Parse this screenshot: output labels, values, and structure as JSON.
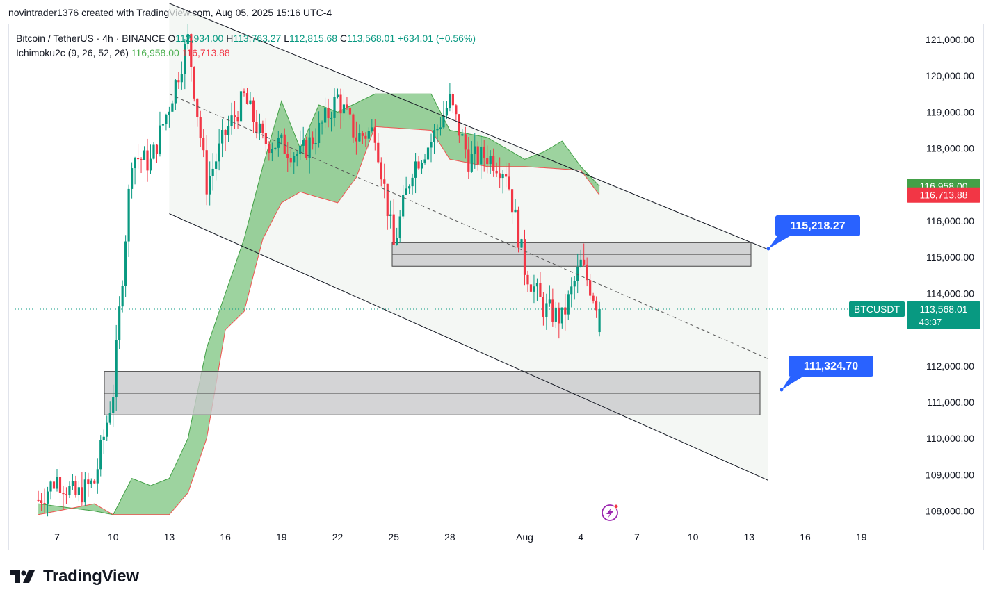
{
  "header": {
    "attribution": "novintrader1376 created with TradingView.com, Aug 05, 2025 15:16 UTC-4"
  },
  "legend": {
    "symbol": "Bitcoin / TetherUS · 4h · BINANCE",
    "o_label": "O",
    "o_value": "112,934.00",
    "h_label": "H",
    "h_value": "113,763.27",
    "l_label": "L",
    "l_value": "112,815.68",
    "c_label": "C",
    "c_value": "113,568.01",
    "change": "+634.01 (+0.56%)",
    "indicator": "Ichimoku2c (9, 26, 52, 26)",
    "ind_value_1": "116,958.00",
    "ind_value_2": "116,713.88"
  },
  "badges": {
    "ichimoku_a": "116,958.00",
    "ichimoku_b": "116,713.88",
    "ticker": "BTCUSDT",
    "last_price": "113,568.01",
    "countdown": "43:37",
    "callout_upper": "115,218.27",
    "callout_lower": "111,324.70"
  },
  "footer": {
    "brand": "TradingView"
  },
  "colors": {
    "up": "#089981",
    "down": "#f23645",
    "cloud": "#4caf50",
    "callout": "#2962ff",
    "channel": "#f0f3f0",
    "zone": "#c9c9cc"
  },
  "chart_data": {
    "type": "candlestick",
    "title": "Bitcoin / TetherUS · 4h · BINANCE",
    "y_ticks": [
      "121,000.00",
      "120,000.00",
      "119,000.00",
      "118,000.00",
      "116,000.00",
      "115,000.00",
      "114,000.00",
      "112,000.00",
      "111,000.00",
      "110,000.00",
      "109,000.00",
      "108,000.00"
    ],
    "y_tick_values": [
      121000,
      120000,
      119000,
      118000,
      116000,
      115000,
      114000,
      112000,
      111000,
      110000,
      109000,
      108000
    ],
    "x_ticks": [
      "7",
      "10",
      "13",
      "16",
      "19",
      "22",
      "25",
      "28",
      "Aug",
      "4",
      "7",
      "10",
      "13",
      "16",
      "19"
    ],
    "x_tick_dates": [
      "2025-07-07",
      "2025-07-10",
      "2025-07-13",
      "2025-07-16",
      "2025-07-19",
      "2025-07-22",
      "2025-07-25",
      "2025-07-28",
      "2025-08-01",
      "2025-08-04",
      "2025-08-07",
      "2025-08-10",
      "2025-08-13",
      "2025-08-16",
      "2025-08-19"
    ],
    "ylim": [
      107600,
      121800
    ],
    "last_close": 113568.01,
    "price_path_approx": [
      [
        "2025-07-06",
        108300
      ],
      [
        "2025-07-07",
        108900
      ],
      [
        "2025-07-08",
        108400
      ],
      [
        "2025-07-09",
        108800
      ],
      [
        "2025-07-10",
        111300
      ],
      [
        "2025-07-11",
        117800
      ],
      [
        "2025-07-12",
        117600
      ],
      [
        "2025-07-13",
        119200
      ],
      [
        "2025-07-14",
        121000
      ],
      [
        "2025-07-15",
        117000
      ],
      [
        "2025-07-16",
        118400
      ],
      [
        "2025-07-17",
        119400
      ],
      [
        "2025-07-18",
        118200
      ],
      [
        "2025-07-19",
        118100
      ],
      [
        "2025-07-20",
        117800
      ],
      [
        "2025-07-21",
        118500
      ],
      [
        "2025-07-22",
        119400
      ],
      [
        "2025-07-23",
        118300
      ],
      [
        "2025-07-24",
        118500
      ],
      [
        "2025-07-25",
        115300
      ],
      [
        "2025-07-26",
        117500
      ],
      [
        "2025-07-27",
        118200
      ],
      [
        "2025-07-28",
        119300
      ],
      [
        "2025-07-29",
        117700
      ],
      [
        "2025-07-30",
        117800
      ],
      [
        "2025-07-31",
        117400
      ],
      [
        "2025-08-01",
        114700
      ],
      [
        "2025-08-02",
        113600
      ],
      [
        "2025-08-03",
        113300
      ],
      [
        "2025-08-04",
        114800
      ],
      [
        "2025-08-05",
        113568
      ]
    ],
    "annotations": {
      "channel_upper": [
        [
          "2025-07-13",
          122000
        ],
        [
          "2025-08-14",
          115218.27
        ]
      ],
      "channel_lower": [
        [
          "2025-07-13",
          116200
        ],
        [
          "2025-08-14",
          108850
        ]
      ],
      "midline": [
        [
          "2025-07-13",
          119500
        ],
        [
          "2025-08-14",
          112200
        ]
      ],
      "zone_upper": [
        114750,
        115400
      ],
      "zone_lower": [
        110650,
        111850
      ],
      "zone_lower_mid": 111250,
      "target_upper": 115218.27,
      "target_lower": 111324.7
    },
    "ichimoku_cloud_upper_approx": [
      [
        "2025-07-06",
        108200
      ],
      [
        "2025-07-09",
        108000
      ],
      [
        "2025-07-10",
        107900
      ],
      [
        "2025-07-11",
        108900
      ],
      [
        "2025-07-12",
        108700
      ],
      [
        "2025-07-13",
        108900
      ],
      [
        "2025-07-14",
        110000
      ],
      [
        "2025-07-15",
        112500
      ],
      [
        "2025-07-16",
        114000
      ],
      [
        "2025-07-17",
        115500
      ],
      [
        "2025-07-18",
        117500
      ],
      [
        "2025-07-19",
        119300
      ],
      [
        "2025-07-20",
        118000
      ],
      [
        "2025-07-21",
        119200
      ],
      [
        "2025-07-22",
        119000
      ],
      [
        "2025-07-24",
        119500
      ],
      [
        "2025-07-27",
        119500
      ],
      [
        "2025-07-28",
        118500
      ],
      [
        "2025-07-30",
        118300
      ],
      [
        "2025-08-01",
        117700
      ],
      [
        "2025-08-02",
        117900
      ],
      [
        "2025-08-03",
        118200
      ],
      [
        "2025-08-04",
        117500
      ],
      [
        "2025-08-05",
        116958
      ]
    ],
    "ichimoku_cloud_lower_approx": [
      [
        "2025-07-06",
        107900
      ],
      [
        "2025-07-09",
        108200
      ],
      [
        "2025-07-10",
        107900
      ],
      [
        "2025-07-12",
        107900
      ],
      [
        "2025-07-13",
        107900
      ],
      [
        "2025-07-14",
        108500
      ],
      [
        "2025-07-15",
        110000
      ],
      [
        "2025-07-16",
        113000
      ],
      [
        "2025-07-17",
        113500
      ],
      [
        "2025-07-18",
        115500
      ],
      [
        "2025-07-19",
        116500
      ],
      [
        "2025-07-20",
        116800
      ],
      [
        "2025-07-22",
        116500
      ],
      [
        "2025-07-23",
        117200
      ],
      [
        "2025-07-24",
        118600
      ],
      [
        "2025-07-27",
        118500
      ],
      [
        "2025-07-28",
        117700
      ],
      [
        "2025-07-30",
        117500
      ],
      [
        "2025-08-01",
        117500
      ],
      [
        "2025-08-04",
        117400
      ],
      [
        "2025-08-05",
        116713.88
      ]
    ]
  }
}
